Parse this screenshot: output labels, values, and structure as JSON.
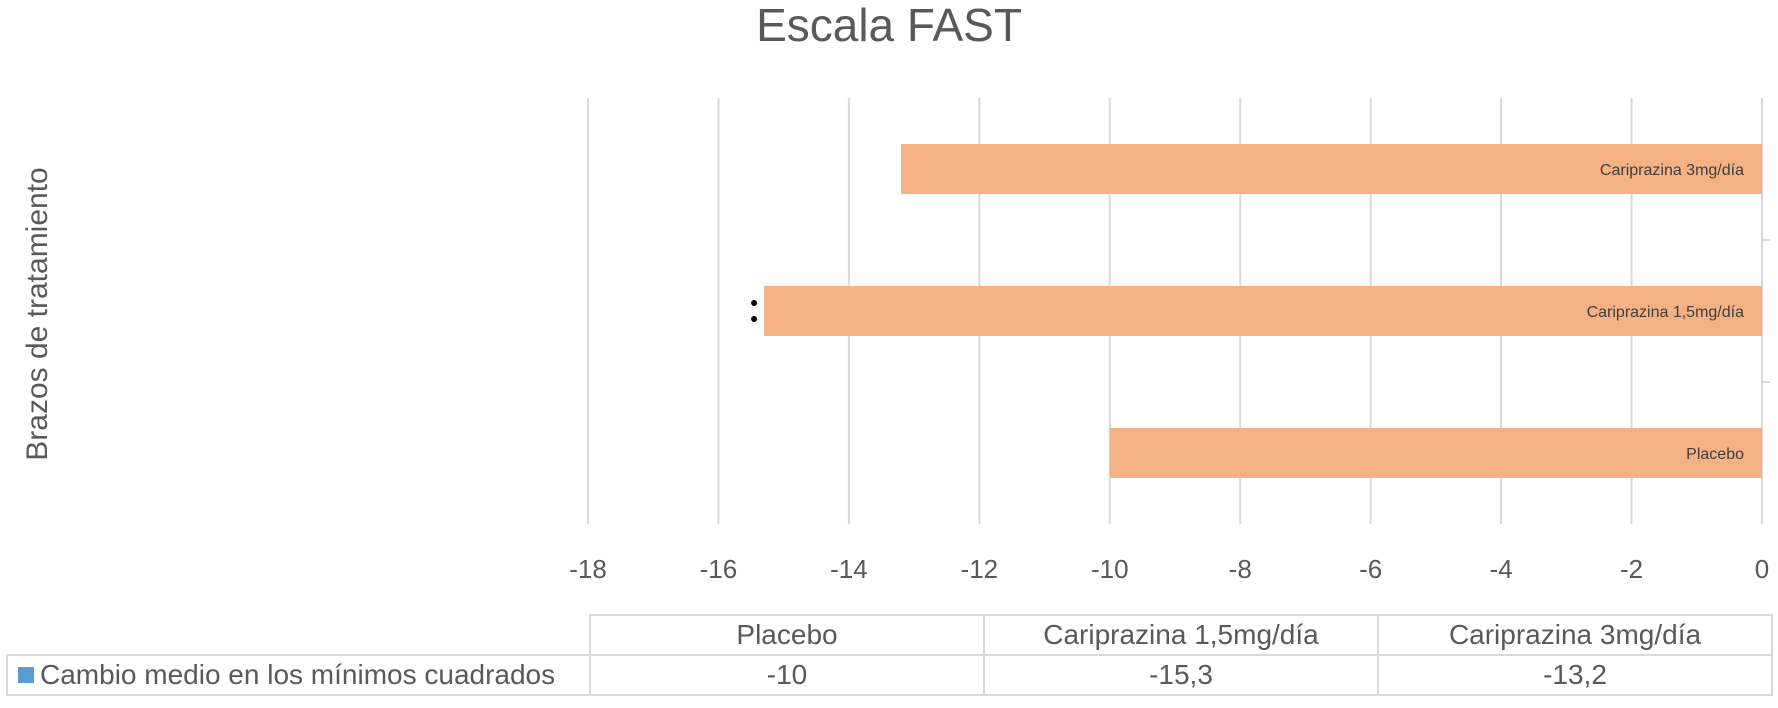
{
  "chart_data": {
    "type": "bar",
    "orientation": "horizontal",
    "title": "Escala FAST",
    "ylabel": "Brazos de tratamiento",
    "xlabel": "",
    "categories": [
      "Placebo",
      "Cariprazina 1,5mg/día",
      "Cariprazina 3mg/día"
    ],
    "series": [
      {
        "name": "Cambio medio en los mínimos cuadrados",
        "values": [
          -10,
          -15.3,
          -13.2
        ],
        "value_labels": [
          "-10",
          "-15,3",
          "-13,2"
        ]
      }
    ],
    "xlim": [
      -18,
      0
    ],
    "x_ticks": [
      -18,
      -16,
      -14,
      -12,
      -10,
      -8,
      -6,
      -4,
      -2,
      0
    ],
    "grid": true,
    "significance_marker": {
      "category": "Cariprazina 1,5mg/día",
      "symbol": "**"
    },
    "data_table": true,
    "bar_color": "#f4b183",
    "legend_color": "#5b9bd5"
  }
}
